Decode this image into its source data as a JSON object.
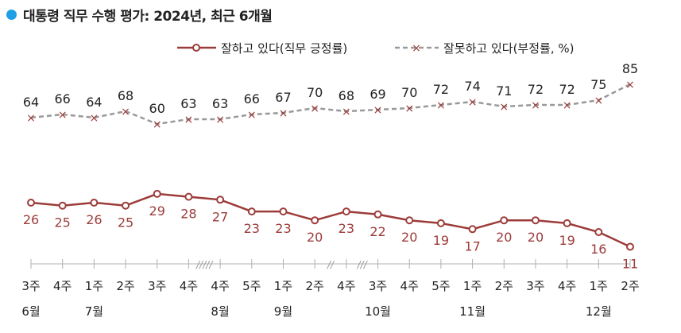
{
  "title": "대통령 직무 수행 평가: 2024년, 최근 6개월",
  "colors": {
    "approve": "#9c3c3a",
    "disapprove": "#999999",
    "title_dot": "#1ea0e6",
    "axis": "#b0b0b0"
  },
  "chart_data": {
    "type": "line",
    "title": "대통령 직무 수행 평가: 2024년, 최근 6개월",
    "x_week_labels": [
      "3주",
      "4주",
      "1주",
      "2주",
      "3주",
      "4주",
      "4주",
      "5주",
      "1주",
      "2주",
      "4주",
      "3주",
      "4주",
      "5주",
      "1주",
      "2주",
      "3주",
      "4주",
      "1주",
      "2주"
    ],
    "month_labels": [
      {
        "label": "6월",
        "index": 0
      },
      {
        "label": "7월",
        "index": 2
      },
      {
        "label": "8월",
        "index": 6
      },
      {
        "label": "9월",
        "index": 8
      },
      {
        "label": "10월",
        "index": 11
      },
      {
        "label": "11월",
        "index": 14
      },
      {
        "label": "12월",
        "index": 18
      }
    ],
    "axis_breaks": [
      {
        "label": "/////",
        "between": [
          5,
          6
        ]
      },
      {
        "label": "//",
        "between": [
          9,
          10
        ]
      },
      {
        "label": "///",
        "between": [
          10,
          11
        ]
      }
    ],
    "series": [
      {
        "name": "잘하고 있다(직무 긍정률)",
        "values": [
          26,
          25,
          26,
          25,
          29,
          28,
          27,
          23,
          23,
          20,
          23,
          22,
          20,
          19,
          17,
          20,
          20,
          19,
          16,
          11
        ]
      },
      {
        "name": "잘못하고 있다(부정률, %)",
        "values": [
          64,
          66,
          64,
          68,
          60,
          63,
          63,
          66,
          67,
          70,
          68,
          69,
          70,
          72,
          74,
          71,
          72,
          72,
          75,
          85
        ]
      }
    ],
    "legend_position": "top-right",
    "grid": false
  }
}
